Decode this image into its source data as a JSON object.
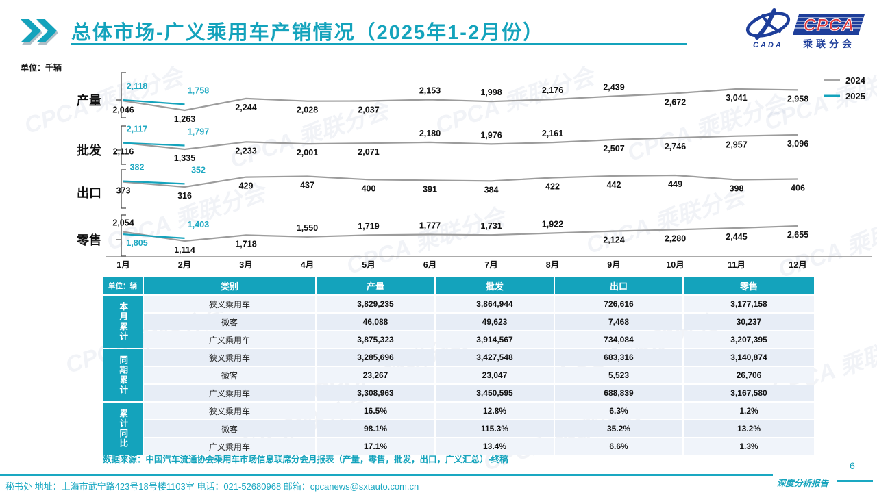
{
  "accent": "#14A3BC",
  "colors": {
    "line_2024": "#9C9C9C",
    "line_2025": "#14A3BC",
    "table_header_bg": "#14A3BC",
    "row_light": "#F0F4FA",
    "row_dark": "#E7EDF6",
    "logo_blue": "#1E3E9A",
    "logo_red": "#E0393E"
  },
  "header": {
    "title": "总体市场-广义乘用车产销情况（2025年1-2月份）",
    "logo": {
      "cada": "CADA",
      "cpca": "CPCA",
      "name": "乘联分会"
    }
  },
  "chart": {
    "unit": "单位：千辆",
    "legend": [
      {
        "label": "2024",
        "color": "#A6A6A6"
      },
      {
        "label": "2025",
        "color": "#14A3BC"
      }
    ]
  },
  "chart_data": [
    {
      "type": "line",
      "title": "产量",
      "x": [
        "1月",
        "2月",
        "3月",
        "4月",
        "5月",
        "6月",
        "7月",
        "8月",
        "9月",
        "10月",
        "11月",
        "12月"
      ],
      "series": [
        {
          "name": "2024",
          "color": "#9C9C9C",
          "values": [
            2046,
            1263,
            2244,
            2028,
            2037,
            2153,
            1998,
            2176,
            2439,
            2672,
            3041,
            2958
          ],
          "label_pos": [
            "b",
            "b",
            "b",
            "b",
            "b",
            "a",
            "a",
            "a",
            "a",
            "b",
            "b",
            "b"
          ]
        },
        {
          "name": "2025",
          "color": "#14A3BC",
          "values": [
            2118,
            1758
          ],
          "label_pos": [
            "a",
            "a"
          ]
        }
      ]
    },
    {
      "type": "line",
      "title": "批发",
      "x": [
        "1月",
        "2月",
        "3月",
        "4月",
        "5月",
        "6月",
        "7月",
        "8月",
        "9月",
        "10月",
        "11月",
        "12月"
      ],
      "series": [
        {
          "name": "2024",
          "color": "#9C9C9C",
          "values": [
            2116,
            1335,
            2233,
            2001,
            2071,
            2180,
            1976,
            2161,
            2507,
            2746,
            2957,
            3096
          ],
          "label_pos": [
            "b",
            "b",
            "b",
            "b",
            "b",
            "a",
            "a",
            "a",
            "b",
            "b",
            "b",
            "b"
          ]
        },
        {
          "name": "2025",
          "color": "#14A3BC",
          "values": [
            2117,
            1797
          ],
          "label_pos": [
            "a",
            "a"
          ]
        }
      ]
    },
    {
      "type": "line",
      "title": "出口",
      "x": [
        "1月",
        "2月",
        "3月",
        "4月",
        "5月",
        "6月",
        "7月",
        "8月",
        "9月",
        "10月",
        "11月",
        "12月"
      ],
      "series": [
        {
          "name": "2024",
          "color": "#9C9C9C",
          "values": [
            373,
            316,
            429,
            437,
            400,
            391,
            384,
            422,
            442,
            449,
            398,
            406
          ],
          "label_pos": [
            "b",
            "b",
            "b",
            "b",
            "b",
            "b",
            "b",
            "b",
            "b",
            "b",
            "b",
            "b"
          ]
        },
        {
          "name": "2025",
          "color": "#14A3BC",
          "values": [
            382,
            352
          ],
          "label_pos": [
            "a",
            "a"
          ]
        }
      ]
    },
    {
      "type": "line",
      "title": "零售",
      "x": [
        "1月",
        "2月",
        "3月",
        "4月",
        "5月",
        "6月",
        "7月",
        "8月",
        "9月",
        "10月",
        "11月",
        "12月"
      ],
      "series": [
        {
          "name": "2024",
          "color": "#9C9C9C",
          "values": [
            2054,
            1114,
            1718,
            1550,
            1719,
            1777,
            1731,
            1922,
            2124,
            2280,
            2445,
            2655
          ],
          "label_pos": [
            "a",
            "b",
            "b",
            "a",
            "a",
            "a",
            "a",
            "a",
            "b",
            "b",
            "b",
            "b"
          ]
        },
        {
          "name": "2025",
          "color": "#14A3BC",
          "values": [
            1805,
            1403
          ],
          "label_pos": [
            "b",
            "a"
          ]
        }
      ]
    },
    {
      "type": "table",
      "unit": "单位：辆",
      "columns": [
        "类别",
        "产量",
        "批发",
        "出口",
        "零售"
      ],
      "groups": [
        {
          "label": "本月累计",
          "rows": [
            [
              "狭义乘用车",
              "3,829,235",
              "3,864,944",
              "726,616",
              "3,177,158"
            ],
            [
              "微客",
              "46,088",
              "49,623",
              "7,468",
              "30,237"
            ],
            [
              "广义乘用车",
              "3,875,323",
              "3,914,567",
              "734,084",
              "3,207,395"
            ]
          ]
        },
        {
          "label": "同期累计",
          "rows": [
            [
              "狭义乘用车",
              "3,285,696",
              "3,427,548",
              "683,316",
              "3,140,874"
            ],
            [
              "微客",
              "23,267",
              "23,047",
              "5,523",
              "26,706"
            ],
            [
              "广义乘用车",
              "3,308,963",
              "3,450,595",
              "688,839",
              "3,167,580"
            ]
          ]
        },
        {
          "label": "累计同比",
          "rows": [
            [
              "狭义乘用车",
              "16.5%",
              "12.8%",
              "6.3%",
              "1.2%"
            ],
            [
              "微客",
              "98.1%",
              "115.3%",
              "35.2%",
              "13.2%"
            ],
            [
              "广义乘用车",
              "17.1%",
              "13.4%",
              "6.6%",
              "1.3%"
            ]
          ]
        }
      ]
    }
  ],
  "source_note": "数据来源：中国汽车流通协会乘用车市场信息联席分会月报表（产量，零售，批发，出口，广义汇总）-终稿",
  "footer": {
    "left": "秘书处   地址：上海市武宁路423号18号楼1103室  电话：021-52680968   邮箱：cpcanews@sxtauto.com.cn",
    "report_tag": "深度分析报告",
    "page": "6"
  },
  "watermark": {
    "text": "CPCA 乘联分会"
  }
}
